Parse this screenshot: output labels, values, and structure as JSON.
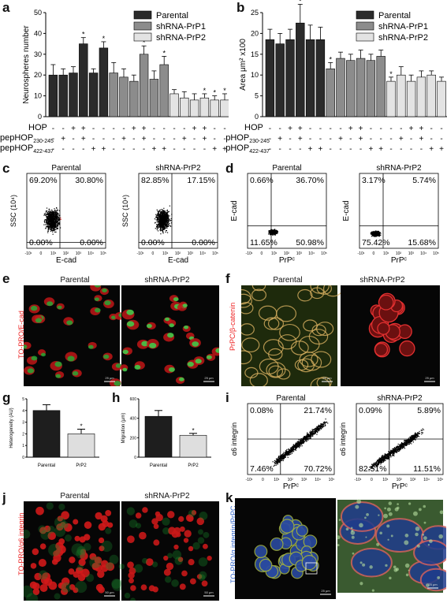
{
  "labels": {
    "a": "a",
    "b": "b",
    "c": "c",
    "d": "d",
    "e": "e",
    "f": "f",
    "g": "g",
    "h": "h",
    "i": "i",
    "j": "j",
    "k": "k"
  },
  "legend": {
    "parental": "Parental",
    "prp1": "shRNA-PrP1",
    "prp2": "shRNA-PrP2"
  },
  "treatments": {
    "hop": "HOP",
    "pep1": "pepHOP",
    "pep1_sub": "230-245",
    "pep2": "pepHOP",
    "pep2_sub": "422-437"
  },
  "cells": {
    "parental": "Parental",
    "prp2": "shRNA-PrP2"
  },
  "flow": {
    "ssc_label": "SSC (10⁴)",
    "ecad_label": "E-cad",
    "prpc_label": "PrPᶜ",
    "a6_label": "α6 integrin",
    "c_parental": {
      "ul": "69.20%",
      "ur": "30.80%",
      "ll": "0.00%",
      "lr": "0.00%"
    },
    "c_prp2": {
      "ul": "82.85%",
      "ur": "17.15%",
      "ll": "0.00%",
      "lr": "0.00%"
    },
    "d_parental": {
      "ul": "0.66%",
      "ur": "36.70%",
      "ll": "11.65%",
      "lr": "50.98%"
    },
    "d_prp2": {
      "ul": "3.17%",
      "ur": "5.74%",
      "ll": "75.42%",
      "lr": "15.68%"
    },
    "i_parental": {
      "ul": "0.08%",
      "ur": "21.74%",
      "ll": "7.46%",
      "lr": "70.72%"
    },
    "i_prp2": {
      "ul": "0.09%",
      "ur": "5.89%",
      "ll": "82.51%",
      "lr": "11.51%"
    }
  },
  "micro": {
    "e_stain": "TO-PRO/E-cad",
    "f_stain": "PrPC/β-catenin",
    "j_stain": "TO-PRO/α6 integrin",
    "k_stain": "TO-PRO/α integrin/PrPC",
    "scale_25": "25 μm",
    "scale_50": "50 μm"
  },
  "small_bars": {
    "parental": "Parental",
    "prp2": "PrP2"
  },
  "chart_data": [
    {
      "type": "bar",
      "panel": "a",
      "ylabel": "Neurospheres number",
      "ylim": [
        0,
        50
      ],
      "yticks": [
        0,
        10,
        20,
        30,
        40,
        50
      ],
      "hop": [
        0,
        0,
        1,
        1,
        0,
        0,
        0,
        0,
        1,
        1,
        0,
        0,
        0,
        0,
        1,
        1,
        0,
        0
      ],
      "pep230": [
        0,
        1,
        0,
        1,
        0,
        0,
        0,
        1,
        0,
        1,
        0,
        0,
        0,
        1,
        0,
        1,
        0,
        0
      ],
      "pep422": [
        0,
        0,
        0,
        0,
        1,
        1,
        0,
        0,
        0,
        0,
        1,
        1,
        0,
        0,
        0,
        0,
        1,
        1
      ],
      "series": [
        {
          "name": "Parental",
          "values": [
            20,
            20,
            21,
            35,
            21,
            33
          ],
          "errors": [
            5,
            3,
            3,
            3,
            2,
            3
          ],
          "sig": [
            0,
            0,
            0,
            1,
            0,
            1
          ]
        },
        {
          "name": "shRNA-PrP1",
          "values": [
            21,
            19,
            17,
            30,
            18,
            25
          ],
          "errors": [
            5,
            4,
            3,
            4,
            4,
            4
          ],
          "sig": [
            0,
            0,
            0,
            1,
            0,
            1
          ]
        },
        {
          "name": "shRNA-PrP2",
          "values": [
            11,
            9,
            8,
            9,
            8,
            8
          ],
          "errors": [
            2,
            3,
            3,
            2,
            2,
            3
          ],
          "sig": [
            0,
            0,
            0,
            1,
            1,
            1
          ]
        }
      ]
    },
    {
      "type": "bar",
      "panel": "b",
      "ylabel": "Area μm² x100",
      "ylim": [
        0,
        25
      ],
      "yticks": [
        0,
        5,
        10,
        15,
        20,
        25
      ],
      "series": [
        {
          "name": "Parental",
          "values": [
            18.5,
            17.5,
            18.5,
            22.5,
            18.5,
            18.5
          ],
          "errors": [
            2.5,
            2.5,
            2.5,
            4.5,
            3.5,
            3
          ],
          "sig": [
            0,
            0,
            0,
            1,
            0,
            0
          ]
        },
        {
          "name": "shRNA-PrP1",
          "values": [
            11.5,
            14,
            13.5,
            14,
            13.5,
            14.5
          ],
          "errors": [
            1.5,
            1.5,
            1.5,
            2,
            1.5,
            1.5
          ],
          "sig": [
            1,
            0,
            0,
            0,
            0,
            0
          ]
        },
        {
          "name": "shRNA-PrP2",
          "values": [
            8.5,
            10,
            8.5,
            9.5,
            10,
            8.5
          ],
          "errors": [
            1,
            2,
            1.5,
            1.5,
            1,
            1
          ],
          "sig": [
            1,
            0,
            0,
            0,
            0,
            0
          ]
        }
      ]
    },
    {
      "type": "bar",
      "panel": "g",
      "ylabel": "Heterogeneity (AU)",
      "categories": [
        "Parental",
        "PrP2"
      ],
      "values": [
        4.0,
        2.0
      ],
      "errors": [
        0.5,
        0.4
      ],
      "ylim": [
        0,
        5
      ],
      "sig": [
        0,
        1
      ]
    },
    {
      "type": "bar",
      "panel": "h",
      "ylabel": "Migration (μm)",
      "categories": [
        "Parental",
        "PrP2"
      ],
      "values": [
        420,
        225
      ],
      "errors": [
        60,
        20
      ],
      "ylim": [
        0,
        600
      ],
      "sig": [
        0,
        1
      ]
    }
  ],
  "colors": {
    "parental": "#2b2b2b",
    "prp1": "#8c8c8c",
    "prp2": "#e3e3e3",
    "red": "#e21b1b",
    "green": "#2fd14a"
  }
}
